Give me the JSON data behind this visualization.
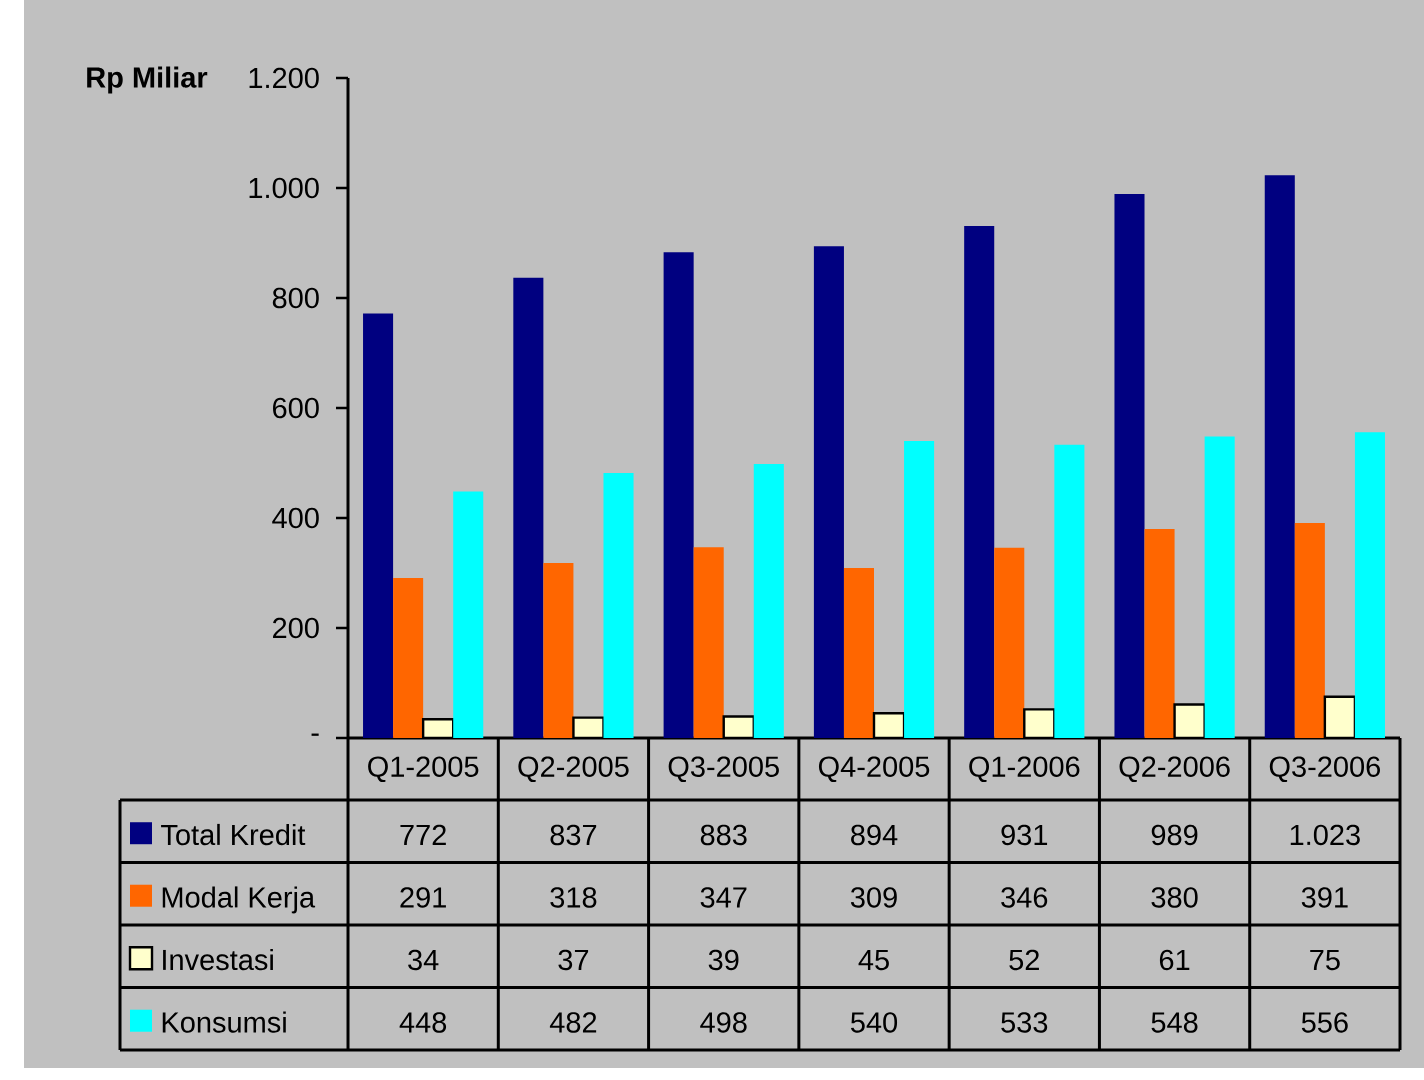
{
  "chart_data": {
    "type": "bar",
    "ylabel": "Rp Miliar",
    "categories": [
      "Q1-2005",
      "Q2-2005",
      "Q3-2005",
      "Q4-2005",
      "Q1-2006",
      "Q2-2006",
      "Q3-2006"
    ],
    "series": [
      {
        "name": "Total Kredit",
        "color": "#000080",
        "values": [
          772,
          837,
          883,
          894,
          931,
          989,
          1023
        ],
        "value_labels": [
          "772",
          "837",
          "883",
          "894",
          "931",
          "989",
          "1.023"
        ]
      },
      {
        "name": "Modal Kerja",
        "color": "#ff6600",
        "values": [
          291,
          318,
          347,
          309,
          346,
          380,
          391
        ],
        "value_labels": [
          "291",
          "318",
          "347",
          "309",
          "346",
          "380",
          "391"
        ]
      },
      {
        "name": "Investasi",
        "color": "#ffffcc",
        "values": [
          34,
          37,
          39,
          45,
          52,
          61,
          75
        ],
        "value_labels": [
          "34",
          "37",
          "39",
          "45",
          "52",
          "61",
          "75"
        ]
      },
      {
        "name": "Konsumsi",
        "color": "#00ffff",
        "values": [
          448,
          482,
          498,
          540,
          533,
          548,
          556
        ],
        "value_labels": [
          "448",
          "482",
          "498",
          "540",
          "533",
          "548",
          "556"
        ]
      }
    ],
    "ylim": [
      0,
      1200
    ],
    "yticks": [
      {
        "value": 0,
        "label": "-"
      },
      200,
      400,
      600,
      800,
      {
        "value": 1000,
        "label": "1.000"
      },
      {
        "value": 1200,
        "label": "1.200"
      }
    ],
    "legend": "bottom"
  }
}
